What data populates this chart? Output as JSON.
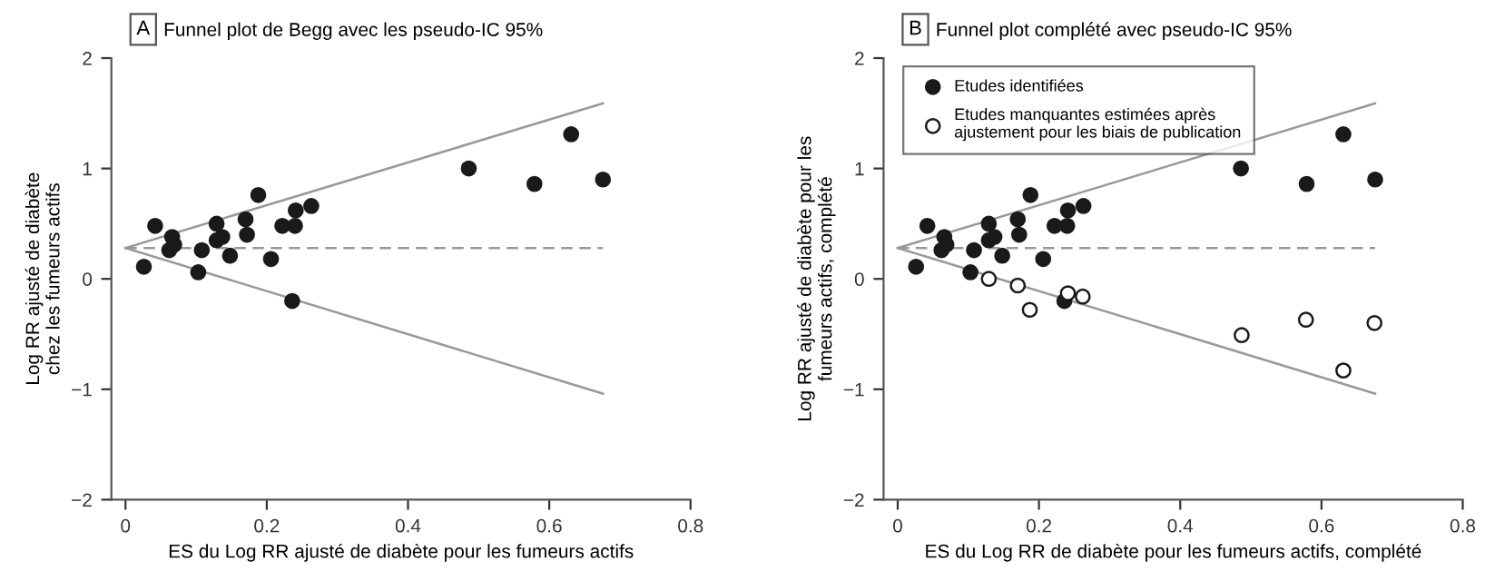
{
  "chart_data": [
    {
      "type": "scatter",
      "title": "Funnel plot de Begg avec les pseudo-IC 95%",
      "annotations": [
        "A"
      ],
      "xlabel": "ES du Log RR ajusté de diabète pour les fumeurs actifs",
      "ylabel": "Log RR ajusté de diabète\nchez les fumeurs actifs",
      "xlim": [
        -0.02,
        0.8
      ],
      "ylim": [
        -2,
        2
      ],
      "xticks": [
        0,
        0.2,
        0.4,
        0.6,
        0.8
      ],
      "yticks": [
        -2,
        -1,
        0,
        1,
        2
      ],
      "grid": false,
      "legend": false,
      "series": [
        {
          "marker": "circle",
          "color": "#1a1a1a",
          "x": [
            0.026,
            0.042,
            0.066,
            0.062,
            0.069,
            0.103,
            0.108,
            0.129,
            0.129,
            0.137,
            0.148,
            0.17,
            0.172,
            0.188,
            0.206,
            0.222,
            0.236,
            0.24,
            0.241,
            0.263,
            0.486,
            0.579,
            0.631,
            0.676
          ],
          "values": [
            0.11,
            0.48,
            0.38,
            0.26,
            0.31,
            0.06,
            0.26,
            0.5,
            0.35,
            0.38,
            0.21,
            0.54,
            0.4,
            0.76,
            0.18,
            0.48,
            -0.2,
            0.48,
            0.62,
            0.66,
            1.0,
            0.86,
            1.31,
            0.9
          ]
        },
        {
          "type": "line",
          "marker": "none",
          "color": "#999999",
          "line_style": "solid",
          "x": [
            0,
            0.676
          ],
          "values": [
            0.28,
            1.59
          ]
        },
        {
          "type": "line",
          "marker": "none",
          "color": "#999999",
          "line_style": "solid",
          "x": [
            0,
            0.676
          ],
          "values": [
            0.28,
            -1.04
          ]
        },
        {
          "type": "line",
          "marker": "none",
          "color": "#999999",
          "line_style": "dashed",
          "x": [
            0,
            0.676
          ],
          "values": [
            0.28,
            0.28
          ]
        }
      ]
    },
    {
      "type": "scatter",
      "title": "Funnel plot complété avec pseudo-IC 95%",
      "annotations": [
        "B"
      ],
      "xlabel": "ES du Log RR de diabète pour les fumeurs actifs, complété",
      "ylabel": "Log RR ajusté de diabète pour les\nfumeurs actifs, complété",
      "xlim": [
        -0.02,
        0.8
      ],
      "ylim": [
        -2,
        2
      ],
      "xticks": [
        0,
        0.2,
        0.4,
        0.6,
        0.8
      ],
      "yticks": [
        -2,
        -1,
        0,
        1,
        2
      ],
      "grid": false,
      "legend": "top left",
      "series": [
        {
          "marker": "circle",
          "name": "Etudes identifiées",
          "color": "#1a1a1a",
          "x": [
            0.026,
            0.042,
            0.066,
            0.062,
            0.069,
            0.103,
            0.108,
            0.129,
            0.129,
            0.137,
            0.148,
            0.17,
            0.172,
            0.188,
            0.206,
            0.222,
            0.236,
            0.24,
            0.241,
            0.263,
            0.486,
            0.579,
            0.631,
            0.676
          ],
          "values": [
            0.11,
            0.48,
            0.38,
            0.26,
            0.31,
            0.06,
            0.26,
            0.5,
            0.35,
            0.38,
            0.21,
            0.54,
            0.4,
            0.76,
            0.18,
            0.48,
            -0.2,
            0.48,
            0.62,
            0.66,
            1.0,
            0.86,
            1.31,
            0.9
          ]
        },
        {
          "marker": "circle",
          "name": "Etudes manquantes estimées après\najustement pour les biais de publication",
          "color": "#ffffff",
          "x": [
            0.129,
            0.17,
            0.187,
            0.241,
            0.262,
            0.487,
            0.578,
            0.631,
            0.675
          ],
          "values": [
            0.0,
            -0.06,
            -0.28,
            -0.13,
            -0.16,
            -0.51,
            -0.37,
            -0.83,
            -0.4
          ]
        },
        {
          "type": "line",
          "marker": "none",
          "color": "#999999",
          "line_style": "solid",
          "x": [
            0,
            0.676
          ],
          "values": [
            0.28,
            1.59
          ]
        },
        {
          "type": "line",
          "marker": "none",
          "color": "#999999",
          "line_style": "solid",
          "x": [
            0,
            0.676
          ],
          "values": [
            0.28,
            -1.04
          ]
        },
        {
          "type": "line",
          "marker": "none",
          "color": "#999999",
          "line_style": "dashed",
          "x": [
            0,
            0.676
          ],
          "values": [
            0.28,
            0.28
          ]
        }
      ]
    }
  ]
}
